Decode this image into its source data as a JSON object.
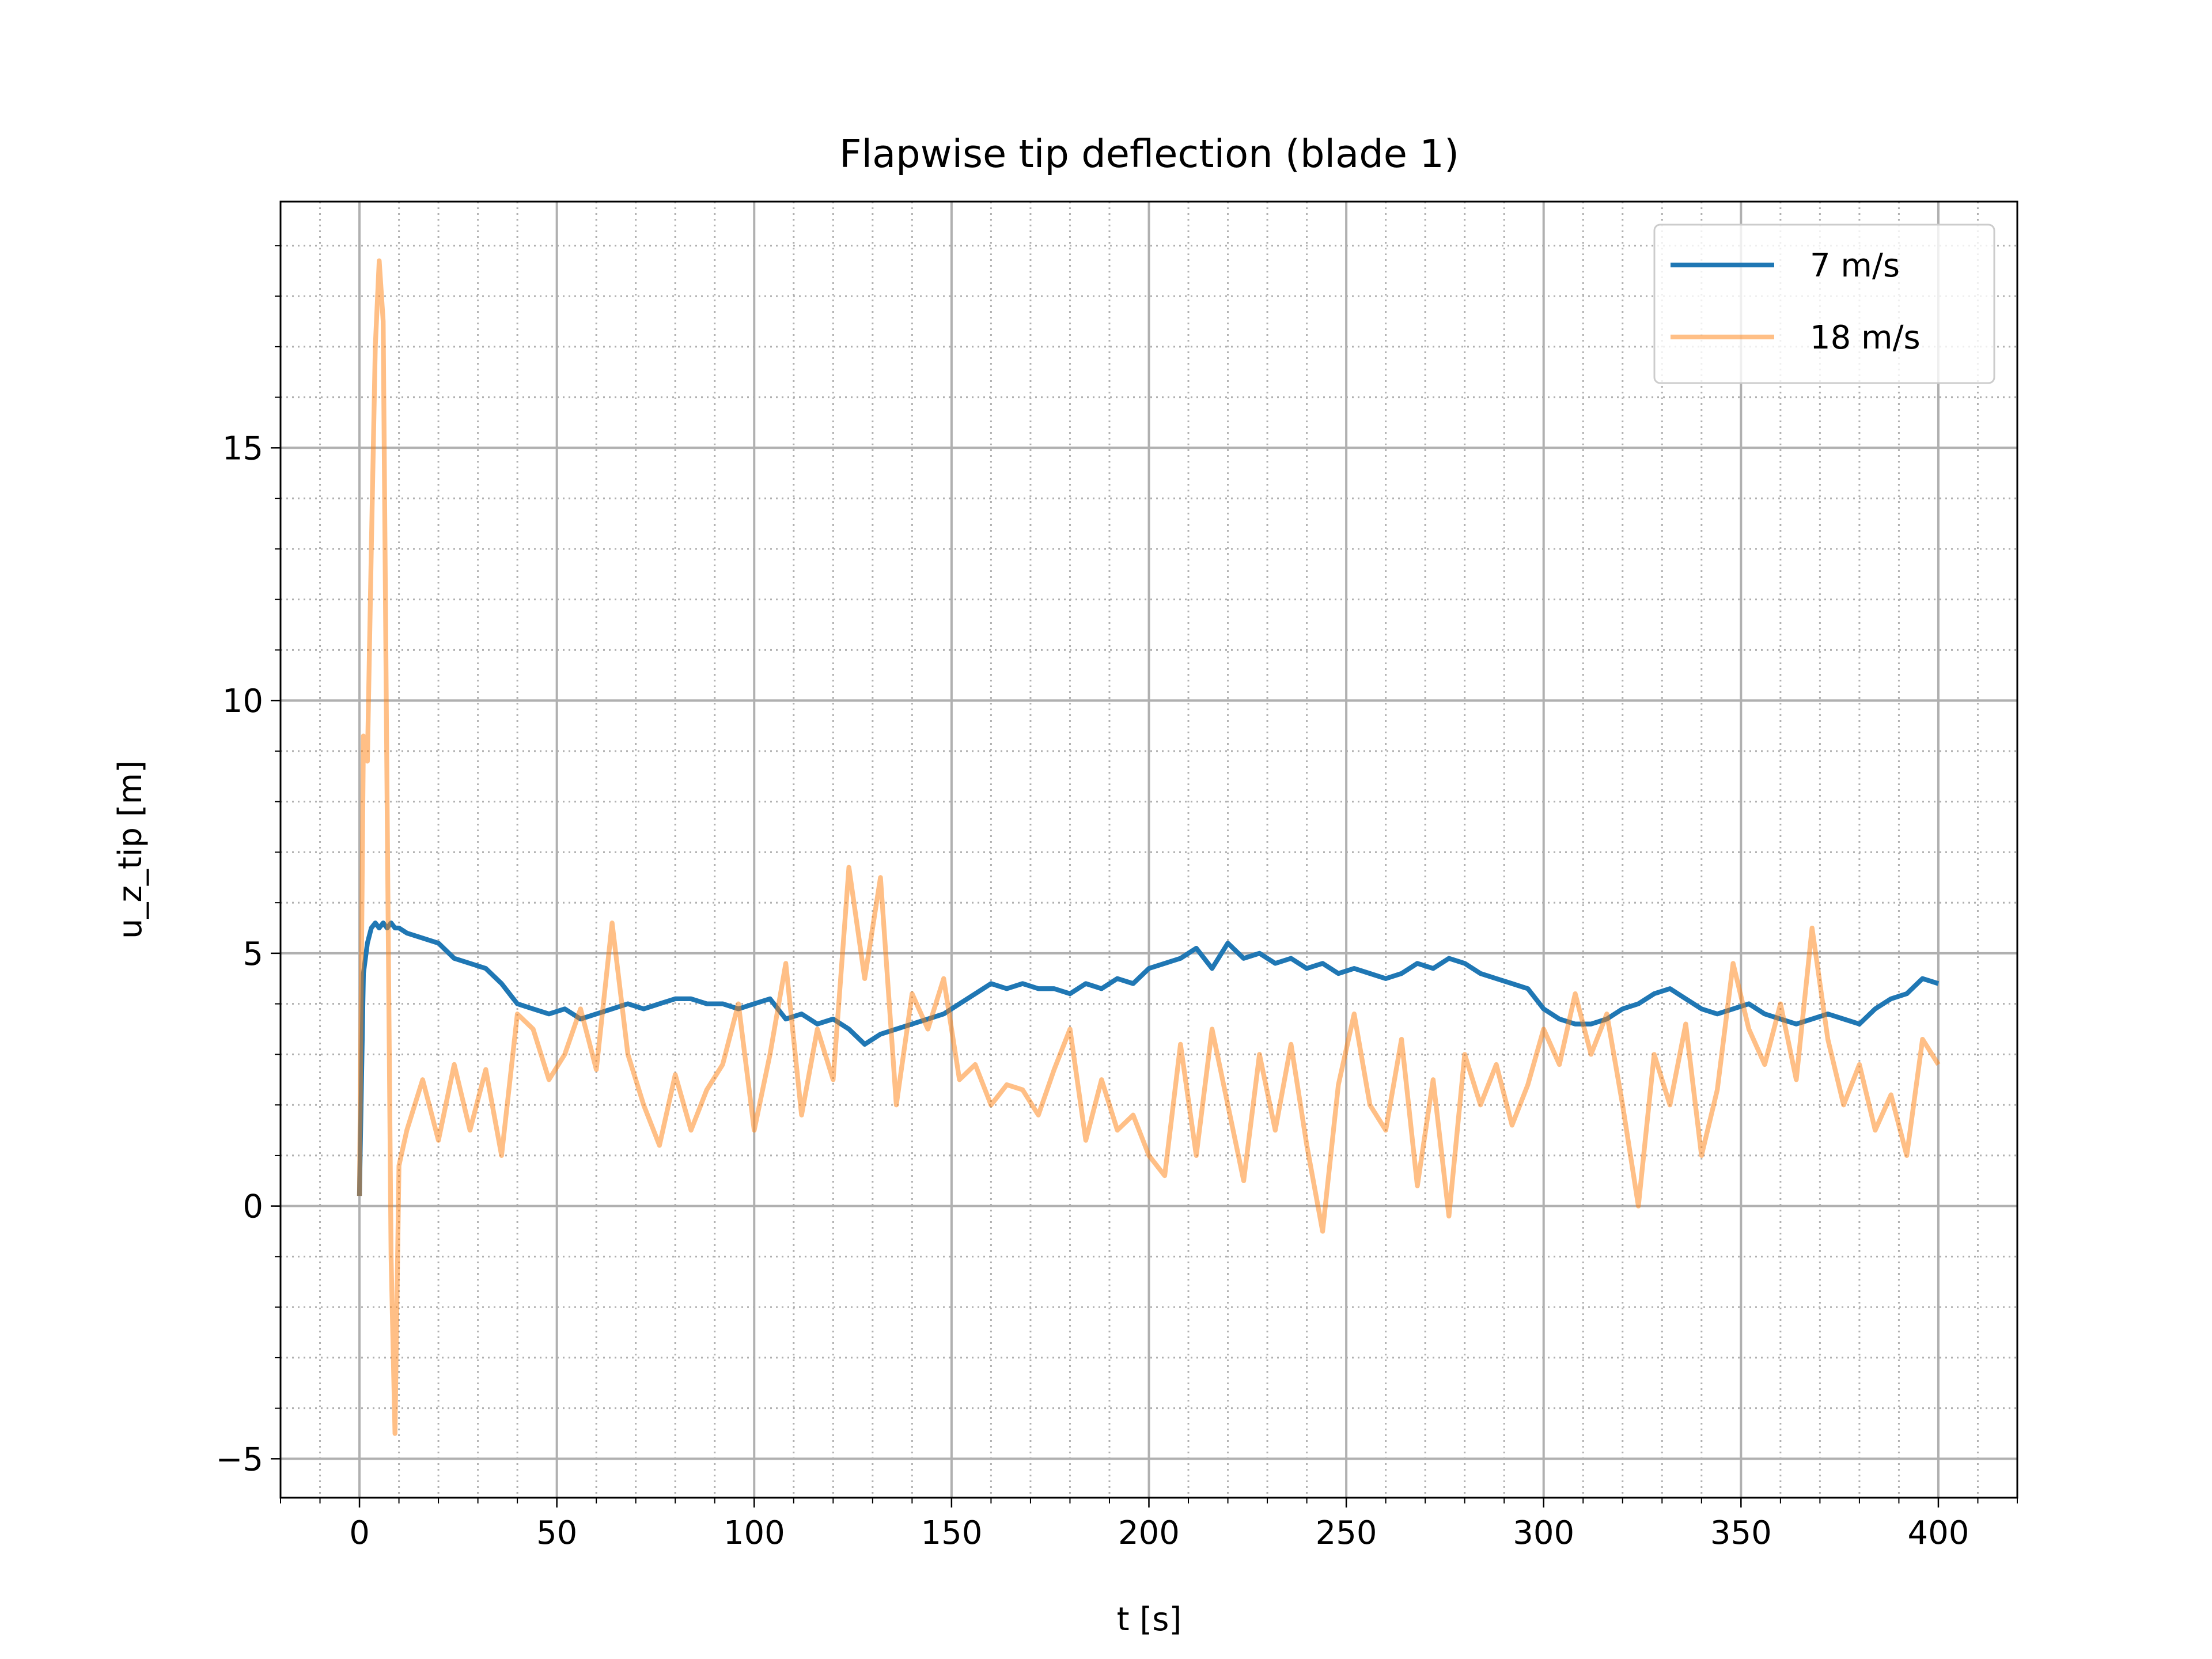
{
  "chart_data": {
    "type": "line",
    "title": "Flapwise tip deflection (blade 1)",
    "x_label": "t [s]",
    "y_label": "u_z_tip [m]",
    "xlim": [
      -20,
      420
    ],
    "ylim": [
      -5.77,
      19.87
    ],
    "xticks": [
      0,
      50,
      100,
      150,
      200,
      250,
      300,
      350,
      400
    ],
    "yticks": [
      {
        "value": -5,
        "label": "−5"
      },
      0,
      5,
      10,
      15
    ],
    "grid": true,
    "minor_grid": true,
    "legend": "upper right",
    "x": [
      0,
      1,
      2,
      3,
      4,
      5,
      6,
      7,
      8,
      9,
      10,
      12,
      16,
      20,
      24,
      28,
      32,
      36,
      40,
      44,
      48,
      52,
      56,
      60,
      64,
      68,
      72,
      76,
      80,
      84,
      88,
      92,
      96,
      100,
      104,
      108,
      112,
      116,
      120,
      124,
      128,
      132,
      136,
      140,
      144,
      148,
      152,
      156,
      160,
      164,
      168,
      172,
      176,
      180,
      184,
      188,
      192,
      196,
      200,
      204,
      208,
      212,
      216,
      220,
      224,
      228,
      232,
      236,
      240,
      244,
      248,
      252,
      256,
      260,
      264,
      268,
      272,
      276,
      280,
      284,
      288,
      292,
      296,
      300,
      304,
      308,
      312,
      316,
      320,
      324,
      328,
      332,
      336,
      340,
      344,
      348,
      352,
      356,
      360,
      364,
      368,
      372,
      376,
      380,
      384,
      388,
      392,
      396,
      400
    ],
    "series": [
      {
        "name": "7 m/s",
        "color": "#1f77b4",
        "opacity": 1,
        "values": [
          0.2,
          4.6,
          5.2,
          5.5,
          5.6,
          5.5,
          5.6,
          5.5,
          5.6,
          5.5,
          5.5,
          5.4,
          5.3,
          5.2,
          4.9,
          4.8,
          4.7,
          4.4,
          4.0,
          3.9,
          3.8,
          3.9,
          3.7,
          3.8,
          3.9,
          4.0,
          3.9,
          4.0,
          4.1,
          4.1,
          4.0,
          4.0,
          3.9,
          4.0,
          4.1,
          3.7,
          3.8,
          3.6,
          3.7,
          3.5,
          3.2,
          3.4,
          3.5,
          3.6,
          3.7,
          3.8,
          4.0,
          4.2,
          4.4,
          4.3,
          4.4,
          4.3,
          4.3,
          4.2,
          4.4,
          4.3,
          4.5,
          4.4,
          4.7,
          4.8,
          4.9,
          5.1,
          4.7,
          5.2,
          4.9,
          5.0,
          4.8,
          4.9,
          4.7,
          4.8,
          4.6,
          4.7,
          4.6,
          4.5,
          4.6,
          4.8,
          4.7,
          4.9,
          4.8,
          4.6,
          4.5,
          4.4,
          4.3,
          3.9,
          3.7,
          3.6,
          3.6,
          3.7,
          3.9,
          4.0,
          4.2,
          4.3,
          4.1,
          3.9,
          3.8,
          3.9,
          4.0,
          3.8,
          3.7,
          3.6,
          3.7,
          3.8,
          3.7,
          3.6,
          3.9,
          4.1,
          4.2,
          4.5,
          4.4
        ]
      },
      {
        "name": "18 m/s",
        "color": "#ff7f0e",
        "opacity": 0.5,
        "values": [
          0.2,
          9.3,
          8.8,
          13,
          17,
          18.7,
          17.5,
          8,
          -1,
          -4.5,
          0.8,
          1.5,
          2.5,
          1.3,
          2.8,
          1.5,
          2.7,
          1.0,
          3.8,
          3.5,
          2.5,
          3.0,
          3.9,
          2.7,
          5.6,
          3.0,
          2.0,
          1.2,
          2.6,
          1.5,
          2.3,
          2.8,
          4.0,
          1.5,
          3.0,
          4.8,
          1.8,
          3.5,
          2.5,
          6.7,
          4.5,
          6.5,
          2.0,
          4.2,
          3.5,
          4.5,
          2.5,
          2.8,
          2.0,
          2.4,
          2.3,
          1.8,
          2.7,
          3.5,
          1.3,
          2.5,
          1.5,
          1.8,
          1.0,
          0.6,
          3.2,
          1.0,
          3.5,
          2.0,
          0.5,
          3.0,
          1.5,
          3.2,
          1.2,
          -0.5,
          2.4,
          3.8,
          2.0,
          1.5,
          3.3,
          0.4,
          2.5,
          -0.2,
          3.0,
          2.0,
          2.8,
          1.6,
          2.4,
          3.5,
          2.8,
          4.2,
          3.0,
          3.8,
          2.0,
          0.0,
          3.0,
          2.0,
          3.6,
          1.0,
          2.3,
          4.8,
          3.5,
          2.8,
          4.0,
          2.5,
          5.5,
          3.3,
          2.0,
          2.8,
          1.5,
          2.2,
          1.0,
          3.3,
          2.8
        ]
      }
    ]
  }
}
